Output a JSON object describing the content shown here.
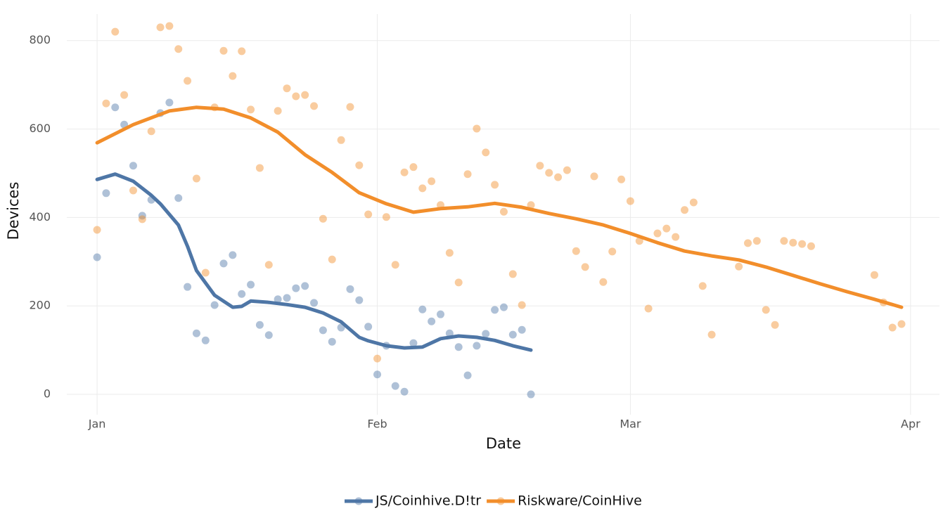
{
  "chart_data": {
    "type": "scatter",
    "x_label": "Date",
    "y_label": "Devices",
    "xlim": [
      -3.35,
      93.2
    ],
    "xticks": [
      {
        "value": 0,
        "label": "Jan"
      },
      {
        "value": 31,
        "label": "Feb"
      },
      {
        "value": 59,
        "label": "Mar"
      },
      {
        "value": 90,
        "label": "Apr"
      }
    ],
    "ylim": [
      -46,
      860
    ],
    "yticks": [
      0,
      200,
      400,
      600,
      800
    ],
    "grid": true,
    "legend": "bottom",
    "series": [
      {
        "name": "JS/Coinhive.D!tr",
        "color": "#4e76a6",
        "x": [
          0,
          1,
          2,
          3,
          4,
          5,
          6,
          7,
          8,
          9,
          10,
          11,
          12,
          13,
          14,
          15,
          16,
          17,
          18,
          19,
          20,
          21,
          22,
          23,
          24,
          25,
          26,
          27,
          28,
          29,
          30,
          31,
          32,
          33,
          34,
          35,
          36,
          37,
          38,
          39,
          40,
          41,
          42,
          43,
          44,
          45,
          46,
          47,
          48
        ],
        "values": [
          310,
          455,
          649,
          610,
          517,
          404,
          440,
          636,
          660,
          444,
          243,
          138,
          122,
          202,
          296,
          315,
          227,
          248,
          157,
          134,
          215,
          218,
          240,
          245,
          207,
          145,
          119,
          151,
          238,
          213,
          153,
          45,
          110,
          19,
          6,
          116,
          192,
          165,
          181,
          138,
          107,
          43,
          110,
          137,
          191,
          197,
          135,
          146,
          0
        ],
        "trend_x": [
          0,
          2,
          4,
          6,
          7,
          9,
          10,
          11,
          13,
          15,
          16,
          17,
          19,
          21,
          23,
          25,
          27,
          29,
          30,
          32,
          34,
          36,
          38,
          40,
          42,
          44,
          46,
          48
        ],
        "trend": [
          486,
          498,
          482,
          450,
          431,
          383,
          335,
          280,
          224,
          197,
          199,
          211,
          208,
          203,
          197,
          184,
          164,
          129,
          121,
          110,
          105,
          107,
          126,
          132,
          129,
          122,
          110,
          100
        ]
      },
      {
        "name": "Riskware/CoinHive",
        "color": "#f28e2b",
        "x": [
          0,
          1,
          2,
          3,
          4,
          5,
          6,
          7,
          8,
          9,
          10,
          11,
          12,
          13,
          14,
          15,
          16,
          17,
          18,
          19,
          20,
          21,
          22,
          23,
          24,
          25,
          26,
          27,
          28,
          29,
          30,
          31,
          32,
          33,
          34,
          35,
          36,
          37,
          38,
          39,
          40,
          41,
          42,
          43,
          44,
          45,
          46,
          47,
          48,
          49,
          50,
          51,
          52,
          53,
          54,
          55,
          56,
          57,
          58,
          59,
          60,
          61,
          62,
          63,
          64,
          65,
          66,
          67,
          68,
          71,
          72,
          73,
          74,
          75,
          76,
          77,
          78,
          79,
          86,
          87,
          88,
          89
        ],
        "values": [
          372,
          658,
          820,
          677,
          461,
          396,
          595,
          830,
          833,
          781,
          709,
          488,
          275,
          649,
          777,
          720,
          776,
          644,
          512,
          293,
          641,
          692,
          674,
          677,
          652,
          397,
          305,
          575,
          650,
          518,
          407,
          81,
          401,
          293,
          502,
          514,
          466,
          482,
          428,
          320,
          253,
          498,
          601,
          547,
          474,
          413,
          272,
          202,
          428,
          517,
          501,
          491,
          507,
          324,
          288,
          493,
          254,
          323,
          486,
          437,
          347,
          194,
          364,
          375,
          356,
          417,
          434,
          245,
          135,
          289,
          342,
          347,
          191,
          157,
          347,
          343,
          340,
          335,
          270,
          208,
          151,
          159
        ],
        "trend_x": [
          0,
          4,
          8,
          11,
          14,
          17,
          20,
          23,
          26,
          29,
          32,
          35,
          38,
          41,
          44,
          47,
          50,
          53,
          56,
          59,
          62,
          65,
          68,
          71,
          74,
          77,
          80,
          83,
          86,
          89
        ],
        "trend": [
          569,
          610,
          641,
          649,
          645,
          625,
          593,
          542,
          502,
          456,
          431,
          412,
          420,
          424,
          432,
          423,
          409,
          397,
          383,
          364,
          343,
          324,
          313,
          304,
          288,
          269,
          250,
          232,
          215,
          197
        ]
      }
    ]
  }
}
